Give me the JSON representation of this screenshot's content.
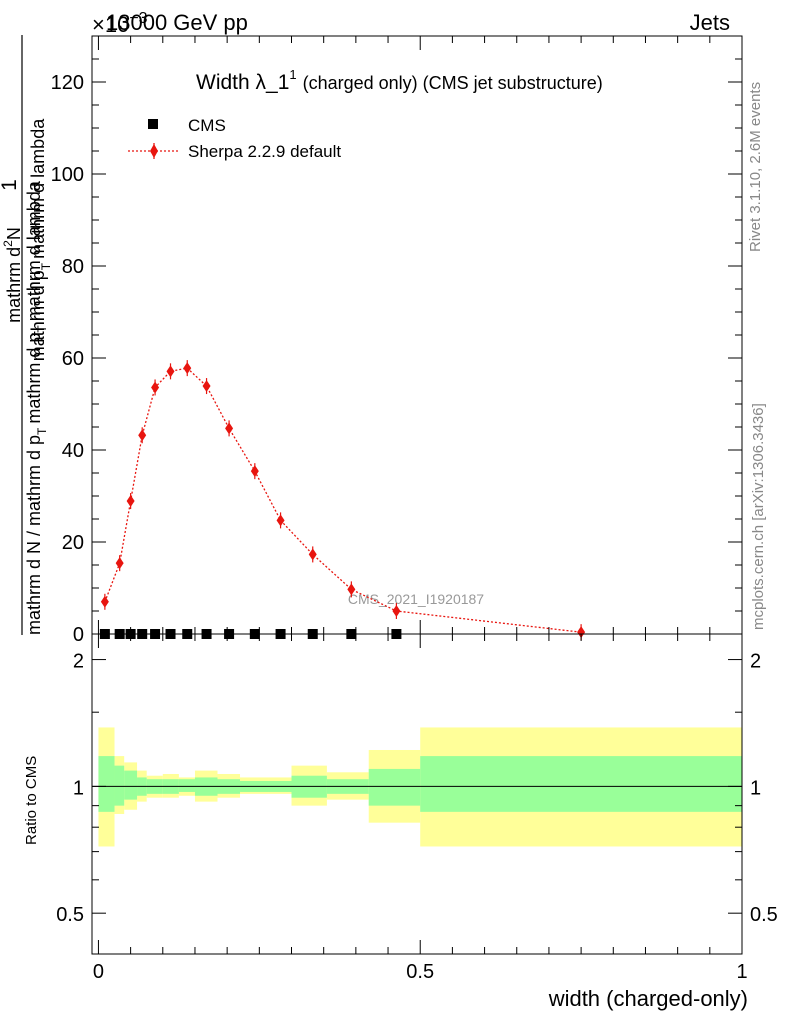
{
  "header": {
    "left": "13000 GeV pp",
    "right": "Jets",
    "exponent": "×10",
    "exponent_power": "−3"
  },
  "side_labels": {
    "rivet": "Rivet 3.1.10,  2.6M events",
    "mcplots": "mcplots.cern.ch [arXiv:1306.3436]"
  },
  "watermark": "CMS_2021_I1920187",
  "colors": {
    "mc": "#e8150f",
    "band_outer": "#ffff99",
    "band_inner": "#99ff99",
    "data": "#000000"
  },
  "chart_data": [
    {
      "type": "line",
      "title": "Width λ_1",
      "title_sup": "1",
      "title_suffix": "(charged only) (CMS jet substructure)",
      "ylabel_num": "1",
      "ylabel_den": "mathrm d N / mathrm d p_{T} mathrm d lambda",
      "ylabel_den_a": "mathrm d N / mathrm d p",
      "ylabel_den_b": "mathrm d p",
      "ylabel_den_c": "mathrm d lambda",
      "ylabel_den_sub": "T",
      "ylabel_frac": "mathrm d^{2}N",
      "ylabel_frac_a": "mathrm d",
      "ylabel_frac_b": "N",
      "ylabel_frac_sup": "2",
      "ylim": [
        0,
        130
      ],
      "y_ticks": [
        0,
        20,
        40,
        60,
        80,
        100,
        120
      ],
      "xlim": [
        -0.01,
        1.0
      ],
      "legend_position": "top-left",
      "series": [
        {
          "name": "CMS",
          "marker": "square",
          "x": [
            0.01,
            0.033,
            0.05,
            0.068,
            0.088,
            0.112,
            0.138,
            0.168,
            0.203,
            0.243,
            0.283,
            0.333,
            0.393,
            0.463
          ],
          "y": [
            0,
            0,
            0,
            0,
            0,
            0,
            0,
            0,
            0,
            0,
            0,
            0,
            0,
            0
          ]
        },
        {
          "name": "Sherpa 2.2.9 default",
          "marker": "diamond",
          "x": [
            0.01,
            0.033,
            0.05,
            0.068,
            0.088,
            0.112,
            0.138,
            0.168,
            0.203,
            0.243,
            0.283,
            0.333,
            0.393,
            0.463,
            0.75
          ],
          "y": [
            7.0,
            15.4,
            28.9,
            43.2,
            53.6,
            57.1,
            57.8,
            53.9,
            44.7,
            35.4,
            24.7,
            17.3,
            9.7,
            5.0,
            0.4
          ]
        }
      ]
    },
    {
      "type": "area",
      "ylabel": "Ratio to CMS",
      "xlabel": "width (charged-only)",
      "ylim": [
        0.4,
        2.3
      ],
      "log_scale_y": true,
      "y_ticks": [
        0.5,
        1,
        2
      ],
      "x_ticks": [
        0,
        0.5,
        1
      ],
      "reference_line": 1,
      "bins": [
        {
          "lo": 0.0,
          "hi": 0.025,
          "inner": [
            0.87,
            1.18
          ],
          "outer": [
            0.72,
            1.38
          ]
        },
        {
          "lo": 0.025,
          "hi": 0.04,
          "inner": [
            0.9,
            1.12
          ],
          "outer": [
            0.86,
            1.18
          ]
        },
        {
          "lo": 0.04,
          "hi": 0.06,
          "inner": [
            0.93,
            1.09
          ],
          "outer": [
            0.88,
            1.14
          ]
        },
        {
          "lo": 0.06,
          "hi": 0.075,
          "inner": [
            0.95,
            1.05
          ],
          "outer": [
            0.92,
            1.09
          ]
        },
        {
          "lo": 0.075,
          "hi": 0.1,
          "inner": [
            0.96,
            1.04
          ],
          "outer": [
            0.94,
            1.06
          ]
        },
        {
          "lo": 0.1,
          "hi": 0.125,
          "inner": [
            0.96,
            1.04
          ],
          "outer": [
            0.94,
            1.07
          ]
        },
        {
          "lo": 0.125,
          "hi": 0.15,
          "inner": [
            0.97,
            1.04
          ],
          "outer": [
            0.95,
            1.05
          ]
        },
        {
          "lo": 0.15,
          "hi": 0.185,
          "inner": [
            0.95,
            1.05
          ],
          "outer": [
            0.92,
            1.09
          ]
        },
        {
          "lo": 0.185,
          "hi": 0.22,
          "inner": [
            0.96,
            1.04
          ],
          "outer": [
            0.94,
            1.07
          ]
        },
        {
          "lo": 0.22,
          "hi": 0.265,
          "inner": [
            0.97,
            1.03
          ],
          "outer": [
            0.96,
            1.05
          ]
        },
        {
          "lo": 0.265,
          "hi": 0.3,
          "inner": [
            0.97,
            1.03
          ],
          "outer": [
            0.96,
            1.05
          ]
        },
        {
          "lo": 0.3,
          "hi": 0.355,
          "inner": [
            0.94,
            1.06
          ],
          "outer": [
            0.9,
            1.12
          ]
        },
        {
          "lo": 0.355,
          "hi": 0.42,
          "inner": [
            0.96,
            1.04
          ],
          "outer": [
            0.93,
            1.08
          ]
        },
        {
          "lo": 0.42,
          "hi": 0.5,
          "inner": [
            0.9,
            1.1
          ],
          "outer": [
            0.82,
            1.22
          ]
        },
        {
          "lo": 0.5,
          "hi": 1.0,
          "inner": [
            0.87,
            1.18
          ],
          "outer": [
            0.72,
            1.38
          ]
        }
      ]
    }
  ]
}
